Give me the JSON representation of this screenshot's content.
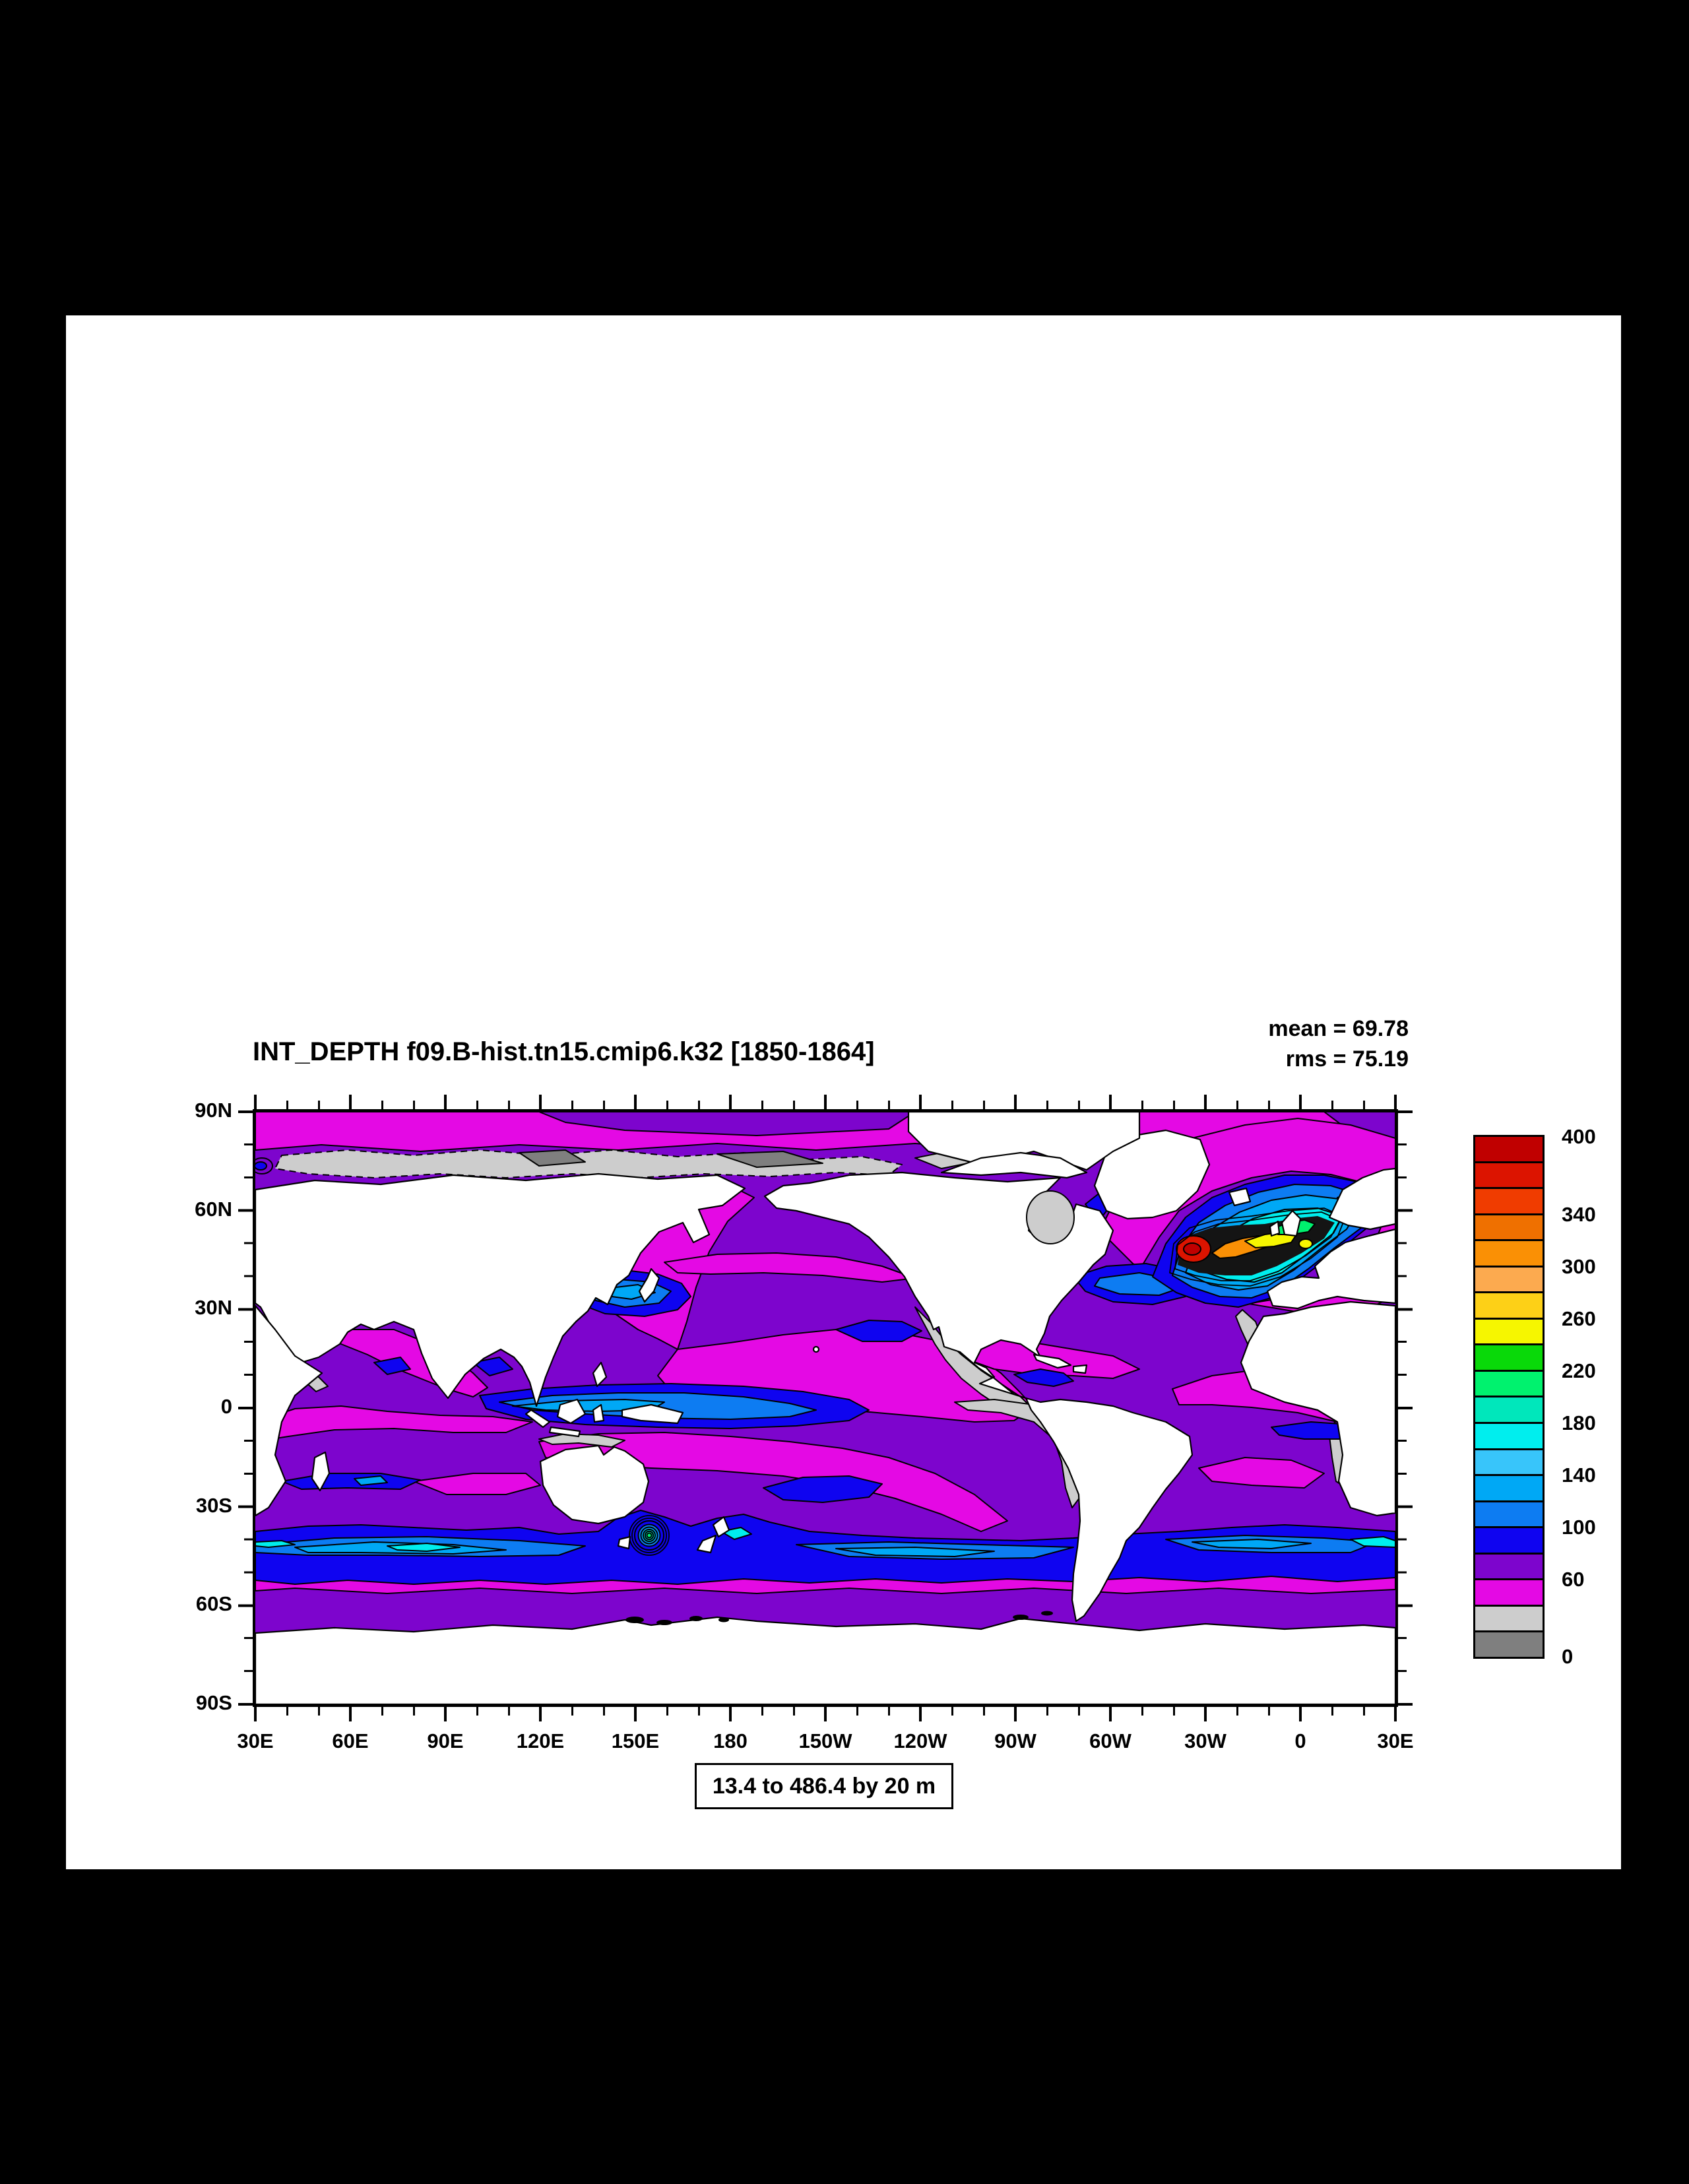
{
  "page": {
    "background": "#000000",
    "canvas_background": "#ffffff"
  },
  "title": "INT_DEPTH f09.B-hist.tn15.cmip6.k32 [1850-1864]",
  "stats": {
    "mean_label": "mean = 69.78",
    "rms_label": "rms = 75.19"
  },
  "range_caption": "13.4 to 486.4 by 20 m",
  "axes": {
    "lat_ticks": [
      "90N",
      "60N",
      "30N",
      "0",
      "30S",
      "60S",
      "90S"
    ],
    "lon_ticks": [
      "30E",
      "60E",
      "90E",
      "120E",
      "150E",
      "180",
      "150W",
      "120W",
      "90W",
      "60W",
      "30W",
      "0",
      "30E"
    ]
  },
  "colorbar": {
    "labels": [
      "400",
      "340",
      "300",
      "260",
      "220",
      "180",
      "140",
      "100",
      "60",
      "0"
    ],
    "palette_bottom_to_top": [
      "#7f7f7f",
      "#cdcdcd",
      "#e409e4",
      "#7d05cd",
      "#0f04f0",
      "#0d7cf2",
      "#00a8f5",
      "#38c5fa",
      "#00eeee",
      "#00e7bb",
      "#00f26e",
      "#09d909",
      "#f6f600",
      "#fdd017",
      "#fcaa4f",
      "#fa9005",
      "#ef7000",
      "#f03c00",
      "#dc1400",
      "#c00000"
    ]
  },
  "chart_data": {
    "type": "heatmap",
    "subtype": "filled_contour_world_map",
    "title": "INT_DEPTH f09.B-hist.tn15.cmip6.k32 [1850-1864]",
    "variable": "INT_DEPTH",
    "units": "m",
    "stats": {
      "mean": 69.78,
      "rms": 75.19
    },
    "data_range": {
      "min": 13.4,
      "max": 486.4,
      "contour_interval": 20
    },
    "contour_levels": {
      "start": 0,
      "end": 400,
      "step": 20
    },
    "labeled_levels": [
      400,
      340,
      300,
      260,
      220,
      180,
      140,
      100,
      60,
      0
    ],
    "palette_bottom_to_top": [
      "#7f7f7f",
      "#cdcdcd",
      "#e409e4",
      "#7d05cd",
      "#0f04f0",
      "#0d7cf2",
      "#00a8f5",
      "#38c5fa",
      "#00eeee",
      "#00e7bb",
      "#00f26e",
      "#09d909",
      "#f6f600",
      "#fdd017",
      "#fcaa4f",
      "#fa9005",
      "#ef7000",
      "#f03c00",
      "#dc1400",
      "#c00000"
    ],
    "projection": "cylindrical equidistant, lon 30E eastward around to 30E, lat 90S-90N",
    "x_tick_labels": [
      "30E",
      "60E",
      "90E",
      "120E",
      "150E",
      "180",
      "150W",
      "120W",
      "90W",
      "60W",
      "30W",
      "0",
      "30E"
    ],
    "y_tick_labels": [
      "90N",
      "60N",
      "30N",
      "0",
      "30S",
      "60S",
      "90S"
    ],
    "legend_position": "right vertical labelbar",
    "grid": "off",
    "notable_features": [
      "Maximum (red, ~380-480 m) in the Labrador Sea / subpolar North Atlantic with dense contour gradient arcing northeast to the Nordic Seas",
      "Southern Ocean circumpolar band ~40-55S of 100-180 m (blue to cyan), with a deep bull's-eye south of Tasmania exceeding 200 m",
      "Equatorial Pacific band of 80-140 m (blue shades)",
      "Most subtropical oceans 60-80 m (purple); transition bands 40-60 m (magenta)",
      "Shallow values 0-40 m (grays) along Arctic Siberian shelf, eastern Pacific coastal upwelling margins, Benguela and NW Africa coasts",
      "Land shown white; Antarctic and high-Arctic ice areas blank"
    ]
  }
}
